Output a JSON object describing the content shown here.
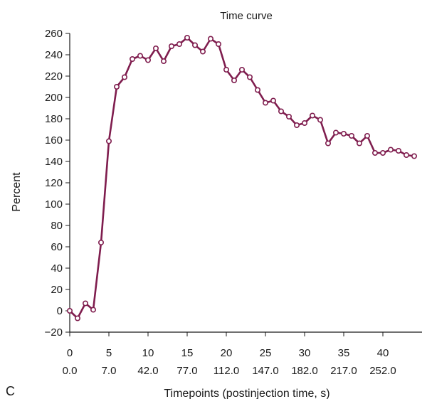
{
  "panel_label": "C",
  "chart_data": {
    "type": "line",
    "title": "Time curve",
    "xlabel": "Timepoints (postinjection time, s)",
    "ylabel": "Percent",
    "xlim": [
      0,
      44
    ],
    "ylim": [
      -20,
      260
    ],
    "grid": false,
    "legend": "none",
    "line_color": "#7f1d4e",
    "marker_fill": "#ffffff",
    "x_ticks": [
      0,
      5,
      10,
      15,
      20,
      25,
      30,
      35,
      40
    ],
    "x_tick_labels": [
      "0",
      "5",
      "10",
      "15",
      "20",
      "25",
      "30",
      "35",
      "40"
    ],
    "x_tick_sublabels": [
      "0.0",
      "7.0",
      "42.0",
      "77.0",
      "112.0",
      "147.0",
      "182.0",
      "217.0",
      "252.0"
    ],
    "y_ticks": [
      -20,
      0,
      20,
      40,
      60,
      80,
      100,
      120,
      140,
      160,
      180,
      200,
      220,
      240,
      260
    ],
    "y_tick_labels": [
      "−20",
      "0",
      "20",
      "40",
      "60",
      "80",
      "100",
      "120",
      "140",
      "160",
      "180",
      "200",
      "220",
      "240",
      "260"
    ],
    "series": [
      {
        "x": [
          0,
          1,
          2,
          3,
          4,
          5,
          6,
          7,
          8,
          9,
          10,
          11,
          12,
          13,
          14,
          15,
          16,
          17,
          18,
          19,
          20,
          21,
          22,
          23,
          24,
          25,
          26,
          27,
          28,
          29,
          30,
          31,
          32,
          33,
          34,
          35,
          36,
          37,
          38,
          39,
          40,
          41,
          42,
          43,
          44
        ],
        "values": [
          0,
          -7,
          7,
          1,
          64,
          159,
          210,
          219,
          236,
          239,
          235,
          246,
          234,
          248,
          250,
          256,
          249,
          243,
          255,
          250,
          226,
          216,
          226,
          219,
          207,
          195,
          197,
          187,
          182,
          174,
          176,
          183,
          179,
          157,
          167,
          166,
          164,
          157,
          164,
          148,
          148,
          151,
          150,
          146,
          145
        ]
      }
    ]
  }
}
